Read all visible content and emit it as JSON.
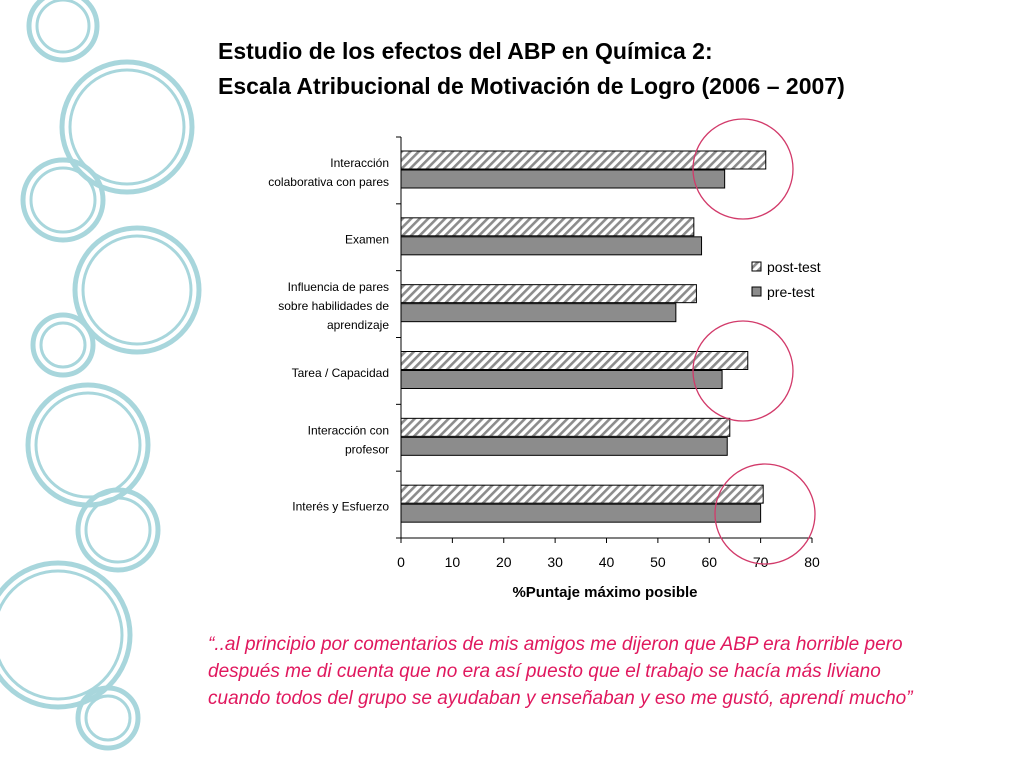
{
  "slide": {
    "title_line1": "Estudio de los efectos del ABP en Química 2:",
    "title_line2": "Escala Atribucional de Motivación de Logro (2006 – 2007)",
    "quote": "“..al principio por comentarios de mis amigos me dijeron que ABP era horrible pero después me di cuenta que no era así puesto que el trabajo se hacía más liviano cuando todos del grupo se ayudaban y enseñaban y eso me gustó, aprendí mucho”"
  },
  "colors": {
    "title": "#000000",
    "quote": "#e0185e",
    "highlight_circle": "#d23a6a",
    "decoration": "#a8d6dc",
    "pre_test_fill": "#8c8c8c",
    "post_test_hatch": "#8c8c8c"
  },
  "chart_data": {
    "type": "bar",
    "orientation": "horizontal",
    "categories": [
      [
        "Interacción",
        "colaborativa con pares"
      ],
      [
        "Examen"
      ],
      [
        "Influencia de pares",
        "sobre habilidades de",
        "aprendizaje"
      ],
      [
        "Tarea / Capacidad"
      ],
      [
        "Interacción con",
        "profesor"
      ],
      [
        "Interés y Esfuerzo"
      ]
    ],
    "series": [
      {
        "name": "post-test",
        "pattern": "hatched",
        "values": [
          71,
          57,
          57.5,
          67.5,
          64,
          70.5
        ]
      },
      {
        "name": "pre-test",
        "pattern": "solid",
        "values": [
          63,
          58.5,
          53.5,
          62.5,
          63.5,
          70
        ]
      }
    ],
    "xlabel": "%Puntaje máximo posible",
    "xticks": [
      0,
      10,
      20,
      30,
      40,
      50,
      60,
      70,
      80
    ],
    "xlim": [
      0,
      80
    ],
    "grid": false,
    "legend_position": "right",
    "highlighted_categories": [
      0,
      3,
      5
    ]
  }
}
